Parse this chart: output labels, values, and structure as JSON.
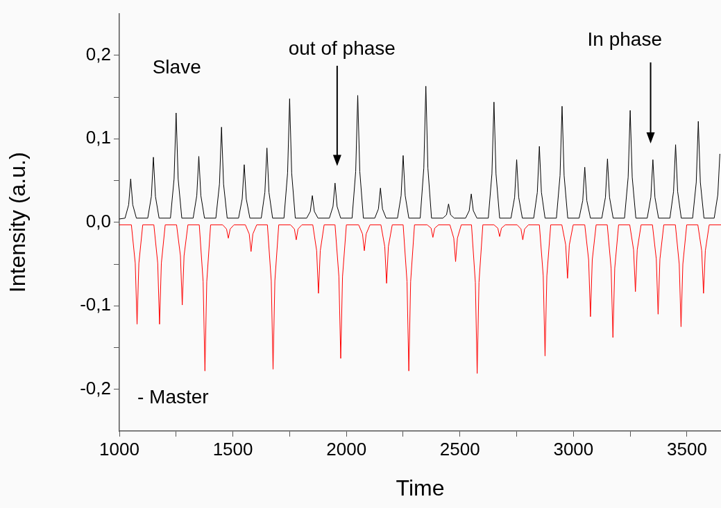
{
  "chart_data": {
    "type": "line",
    "xlabel": "Time",
    "ylabel": "Intensity (a.u.)",
    "xlim": [
      1000,
      3650
    ],
    "ylim": [
      -0.25,
      0.25
    ],
    "xticks": [
      1000,
      {
        "value": 1250,
        "label": null
      },
      1500,
      {
        "value": 1750,
        "label": null
      },
      2000,
      {
        "value": 2250,
        "label": null
      },
      2500,
      {
        "value": 2750,
        "label": null
      },
      3000,
      {
        "value": 3250,
        "label": null
      },
      3500
    ],
    "yticks": [
      {
        "value": -0.2,
        "label": "-0,2"
      },
      {
        "value": -0.15,
        "label": null
      },
      {
        "value": -0.1,
        "label": "-0,1"
      },
      {
        "value": -0.05,
        "label": null
      },
      {
        "value": 0,
        "label": "0,0"
      },
      {
        "value": 0.05,
        "label": null
      },
      {
        "value": 0.1,
        "label": "0,1"
      },
      {
        "value": 0.15,
        "label": null
      },
      {
        "value": 0.2,
        "label": "0,2"
      }
    ],
    "marker": "none",
    "annotations": [
      "out of phase",
      "In phase"
    ],
    "series": [
      {
        "name": "Slave",
        "color": "#000000",
        "x": [
          1000,
          1025,
          1041,
          1050,
          1059,
          1075,
          1125,
          1141,
          1150,
          1159,
          1175,
          1225,
          1241,
          1250,
          1259,
          1275,
          1325,
          1341,
          1350,
          1359,
          1375,
          1425,
          1441,
          1450,
          1459,
          1475,
          1525,
          1541,
          1550,
          1559,
          1575,
          1625,
          1641,
          1650,
          1659,
          1675,
          1725,
          1741,
          1750,
          1759,
          1775,
          1825,
          1841,
          1850,
          1859,
          1875,
          1925,
          1941,
          1950,
          1959,
          1975,
          2025,
          2041,
          2050,
          2059,
          2075,
          2125,
          2141,
          2150,
          2159,
          2175,
          2225,
          2241,
          2250,
          2259,
          2275,
          2325,
          2341,
          2350,
          2359,
          2375,
          2425,
          2441,
          2450,
          2459,
          2475,
          2525,
          2541,
          2550,
          2559,
          2575,
          2625,
          2641,
          2650,
          2659,
          2675,
          2725,
          2741,
          2750,
          2759,
          2775,
          2825,
          2841,
          2850,
          2859,
          2875,
          2925,
          2941,
          2950,
          2959,
          2975,
          3025,
          3041,
          3050,
          3059,
          3075,
          3125,
          3141,
          3150,
          3159,
          3175,
          3225,
          3241,
          3250,
          3259,
          3275,
          3325,
          3341,
          3350,
          3359,
          3375,
          3425,
          3441,
          3450,
          3459,
          3475,
          3525,
          3541,
          3550,
          3559,
          3575,
          3620,
          3636,
          3645
        ],
        "values": [
          0.004,
          0.005,
          0.021,
          0.052,
          0.021,
          0.005,
          0.005,
          0.031,
          0.078,
          0.031,
          0.005,
          0.005,
          0.052,
          0.131,
          0.052,
          0.005,
          0.005,
          0.032,
          0.079,
          0.032,
          0.005,
          0.005,
          0.046,
          0.114,
          0.046,
          0.005,
          0.005,
          0.028,
          0.069,
          0.028,
          0.005,
          0.005,
          0.036,
          0.089,
          0.036,
          0.005,
          0.005,
          0.059,
          0.148,
          0.059,
          0.005,
          0.005,
          0.013,
          0.032,
          0.013,
          0.005,
          0.005,
          0.019,
          0.047,
          0.019,
          0.005,
          0.005,
          0.061,
          0.152,
          0.061,
          0.005,
          0.005,
          0.016,
          0.041,
          0.016,
          0.005,
          0.005,
          0.032,
          0.08,
          0.032,
          0.005,
          0.005,
          0.065,
          0.163,
          0.065,
          0.005,
          0.005,
          0.009,
          0.022,
          0.009,
          0.005,
          0.005,
          0.014,
          0.034,
          0.014,
          0.005,
          0.005,
          0.058,
          0.144,
          0.058,
          0.005,
          0.005,
          0.03,
          0.075,
          0.03,
          0.005,
          0.005,
          0.036,
          0.091,
          0.036,
          0.005,
          0.005,
          0.056,
          0.139,
          0.056,
          0.005,
          0.005,
          0.026,
          0.066,
          0.026,
          0.005,
          0.005,
          0.03,
          0.076,
          0.03,
          0.005,
          0.005,
          0.054,
          0.134,
          0.054,
          0.005,
          0.005,
          0.03,
          0.075,
          0.03,
          0.005,
          0.005,
          0.037,
          0.093,
          0.037,
          0.005,
          0.005,
          0.048,
          0.121,
          0.048,
          0.005,
          0.005,
          0.033,
          0.082
        ]
      },
      {
        "name": "- Master",
        "color": "#ff0000",
        "x": [
          1000,
          1053,
          1070,
          1078,
          1086,
          1103,
          1152,
          1169,
          1177,
          1185,
          1202,
          1252,
          1269,
          1277,
          1285,
          1302,
          1352,
          1369,
          1377,
          1385,
          1402,
          1455,
          1472,
          1480,
          1488,
          1505,
          1555,
          1572,
          1580,
          1588,
          1605,
          1652,
          1669,
          1677,
          1685,
          1702,
          1754,
          1771,
          1779,
          1787,
          1804,
          1852,
          1869,
          1877,
          1885,
          1902,
          1950,
          1967,
          1975,
          1983,
          2000,
          2054,
          2071,
          2079,
          2087,
          2104,
          2152,
          2169,
          2177,
          2185,
          2202,
          2250,
          2267,
          2275,
          2283,
          2300,
          2356,
          2373,
          2381,
          2389,
          2406,
          2456,
          2473,
          2481,
          2489,
          2506,
          2551,
          2568,
          2576,
          2584,
          2601,
          2650,
          2667,
          2675,
          2683,
          2700,
          2752,
          2769,
          2777,
          2785,
          2802,
          2850,
          2867,
          2875,
          2883,
          2900,
          2949,
          2966,
          2974,
          2982,
          2999,
          3050,
          3067,
          3075,
          3083,
          3100,
          3149,
          3166,
          3174,
          3182,
          3199,
          3248,
          3265,
          3273,
          3281,
          3298,
          3348,
          3365,
          3373,
          3381,
          3398,
          3449,
          3466,
          3474,
          3482,
          3499,
          3548,
          3565,
          3573,
          3581,
          3598,
          3650
        ],
        "values": [
          -0.003,
          -0.003,
          -0.049,
          -0.122,
          -0.049,
          -0.003,
          -0.003,
          -0.049,
          -0.122,
          -0.049,
          -0.003,
          -0.003,
          -0.04,
          -0.099,
          -0.04,
          -0.003,
          -0.003,
          -0.071,
          -0.178,
          -0.071,
          -0.003,
          -0.003,
          -0.008,
          -0.019,
          -0.008,
          -0.003,
          -0.003,
          -0.014,
          -0.035,
          -0.014,
          -0.003,
          -0.003,
          -0.07,
          -0.176,
          -0.07,
          -0.003,
          -0.003,
          -0.008,
          -0.021,
          -0.008,
          -0.003,
          -0.003,
          -0.034,
          -0.085,
          -0.034,
          -0.003,
          -0.003,
          -0.065,
          -0.163,
          -0.065,
          -0.003,
          -0.003,
          -0.014,
          -0.034,
          -0.014,
          -0.003,
          -0.003,
          -0.029,
          -0.073,
          -0.029,
          -0.003,
          -0.003,
          -0.071,
          -0.178,
          -0.071,
          -0.003,
          -0.003,
          -0.007,
          -0.018,
          -0.007,
          -0.003,
          -0.003,
          -0.019,
          -0.047,
          -0.019,
          -0.003,
          -0.003,
          -0.072,
          -0.181,
          -0.072,
          -0.003,
          -0.003,
          -0.007,
          -0.017,
          -0.007,
          -0.003,
          -0.003,
          -0.008,
          -0.021,
          -0.008,
          -0.003,
          -0.003,
          -0.064,
          -0.16,
          -0.064,
          -0.003,
          -0.003,
          -0.027,
          -0.067,
          -0.027,
          -0.003,
          -0.003,
          -0.045,
          -0.113,
          -0.045,
          -0.003,
          -0.003,
          -0.055,
          -0.138,
          -0.055,
          -0.003,
          -0.003,
          -0.033,
          -0.083,
          -0.033,
          -0.003,
          -0.003,
          -0.044,
          -0.11,
          -0.044,
          -0.003,
          -0.003,
          -0.05,
          -0.125,
          -0.05,
          -0.003,
          -0.003,
          -0.034,
          -0.085,
          -0.034,
          -0.003,
          -0.003
        ]
      }
    ]
  }
}
